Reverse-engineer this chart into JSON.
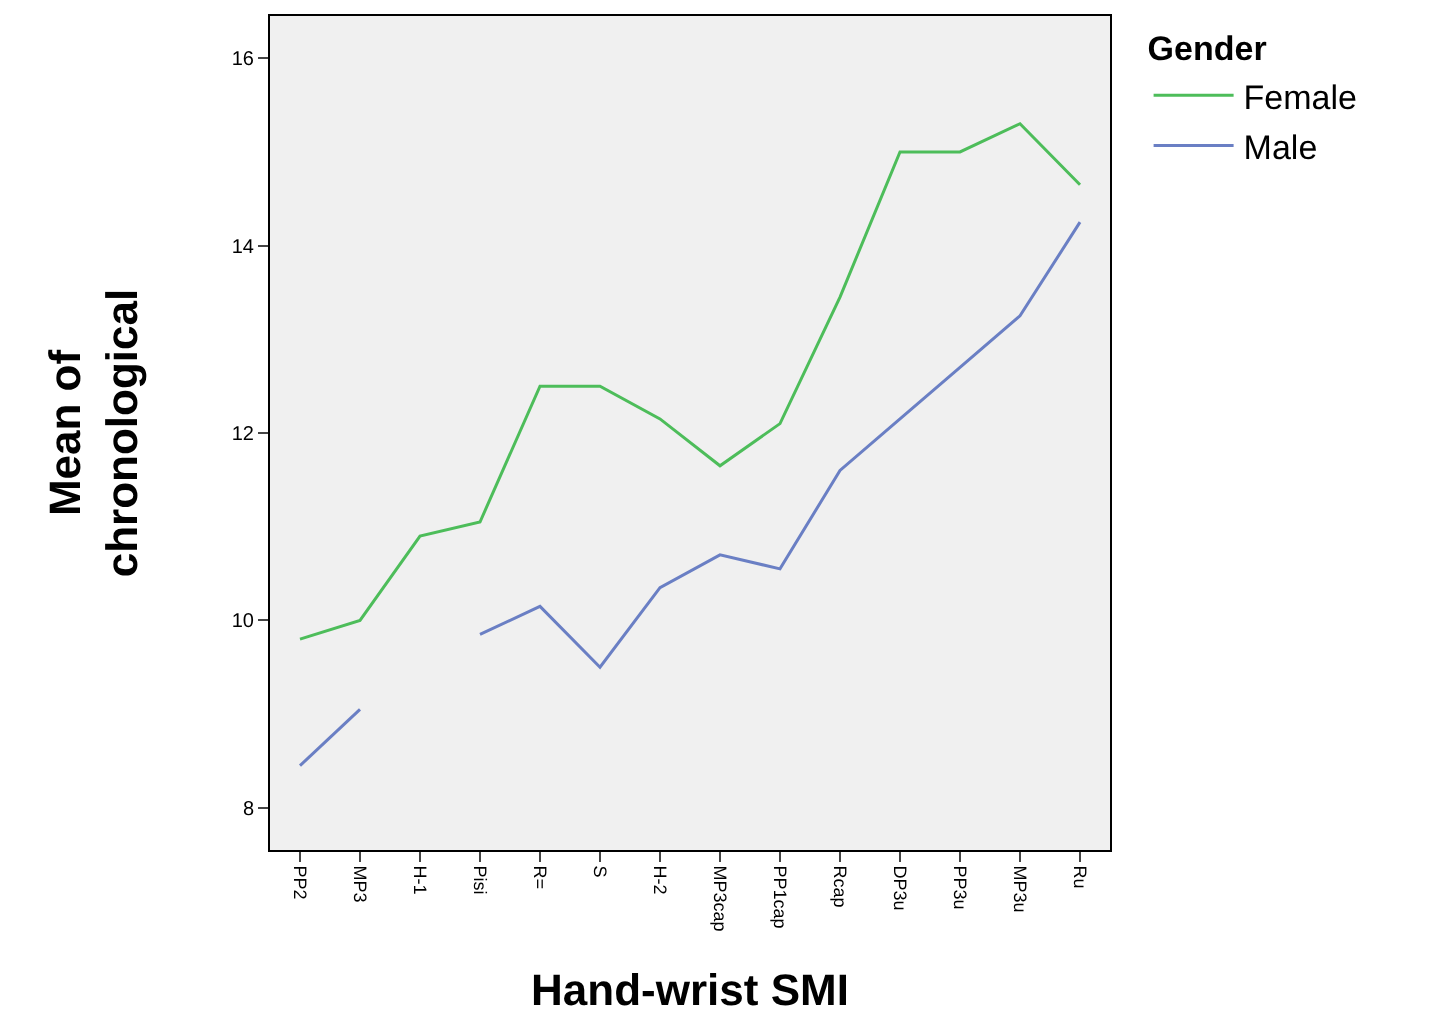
{
  "chart_data": {
    "type": "line",
    "xlabel": "Hand-wrist SMI",
    "ylabel": "Mean of chronological",
    "legend_title": "Gender",
    "categories": [
      "PP2",
      "MP3",
      "H-1",
      "Pisi",
      "R=",
      "S",
      "H-2",
      "MP3cap",
      "PP1cap",
      "Rcap",
      "DP3u",
      "PP3u",
      "MP3u",
      "Ru"
    ],
    "series": [
      {
        "name": "Female",
        "color": "#4dbd5a",
        "values": [
          9.8,
          10.0,
          10.9,
          11.05,
          12.5,
          12.5,
          12.15,
          11.65,
          12.1,
          13.45,
          15.0,
          15.0,
          15.3,
          14.65
        ]
      },
      {
        "name": "Male",
        "color": "#6a7fc4",
        "values": [
          8.45,
          9.05,
          null,
          9.85,
          10.15,
          9.5,
          10.35,
          10.7,
          10.55,
          11.6,
          12.15,
          12.7,
          13.25,
          14.25
        ]
      }
    ],
    "ylim": [
      7.55,
      16.45
    ],
    "yticks": [
      8,
      10,
      12,
      14,
      16
    ],
    "grid": false,
    "legend": "top right",
    "marker": "none",
    "line_style": "solid"
  }
}
